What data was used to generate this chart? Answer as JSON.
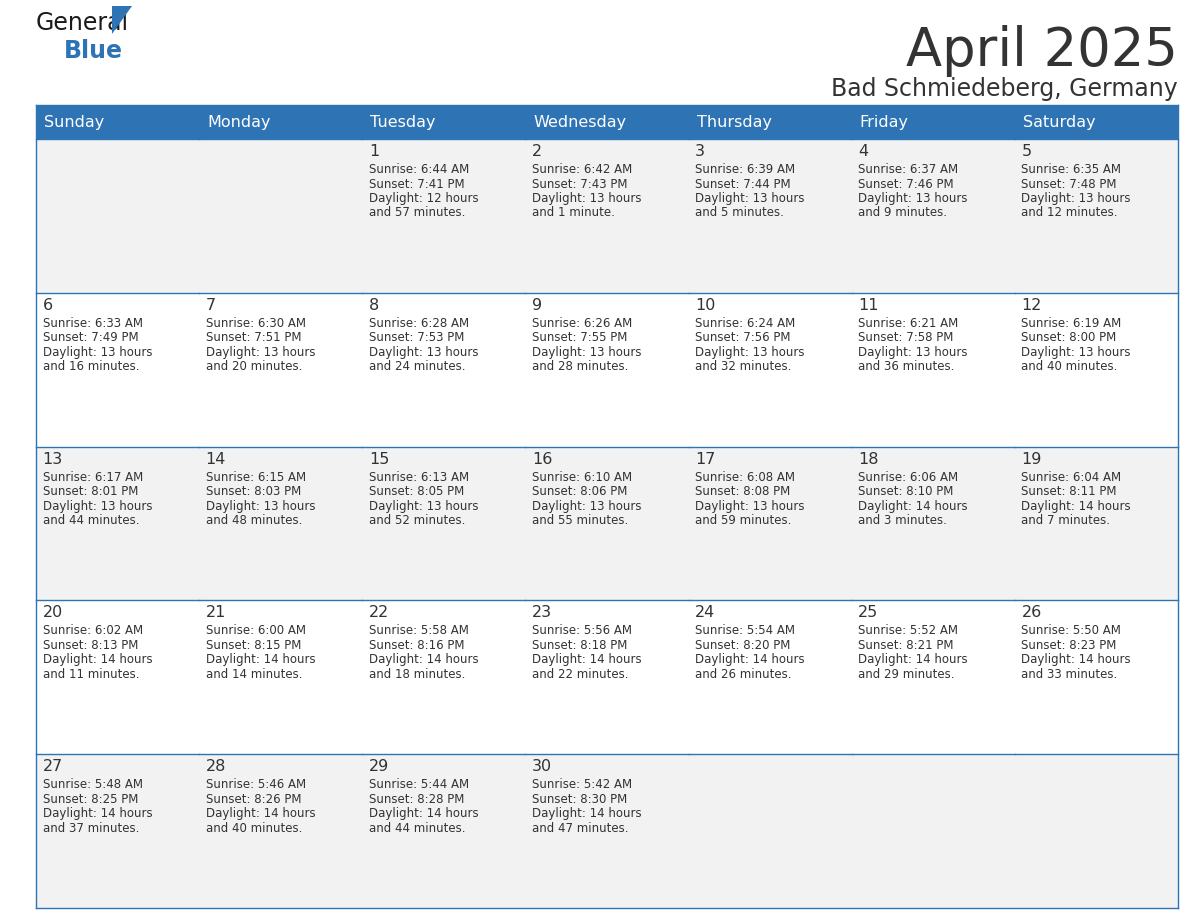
{
  "title": "April 2025",
  "subtitle": "Bad Schmiedeberg, Germany",
  "header_bg": "#2E74B5",
  "header_text_color": "#FFFFFF",
  "cell_bg_light": "#F2F2F2",
  "cell_bg_white": "#FFFFFF",
  "border_color": "#2E74B5",
  "text_color": "#333333",
  "days_of_week": [
    "Sunday",
    "Monday",
    "Tuesday",
    "Wednesday",
    "Thursday",
    "Friday",
    "Saturday"
  ],
  "weeks": [
    [
      {
        "day": "",
        "info": ""
      },
      {
        "day": "",
        "info": ""
      },
      {
        "day": "1",
        "info": "Sunrise: 6:44 AM\nSunset: 7:41 PM\nDaylight: 12 hours\nand 57 minutes."
      },
      {
        "day": "2",
        "info": "Sunrise: 6:42 AM\nSunset: 7:43 PM\nDaylight: 13 hours\nand 1 minute."
      },
      {
        "day": "3",
        "info": "Sunrise: 6:39 AM\nSunset: 7:44 PM\nDaylight: 13 hours\nand 5 minutes."
      },
      {
        "day": "4",
        "info": "Sunrise: 6:37 AM\nSunset: 7:46 PM\nDaylight: 13 hours\nand 9 minutes."
      },
      {
        "day": "5",
        "info": "Sunrise: 6:35 AM\nSunset: 7:48 PM\nDaylight: 13 hours\nand 12 minutes."
      }
    ],
    [
      {
        "day": "6",
        "info": "Sunrise: 6:33 AM\nSunset: 7:49 PM\nDaylight: 13 hours\nand 16 minutes."
      },
      {
        "day": "7",
        "info": "Sunrise: 6:30 AM\nSunset: 7:51 PM\nDaylight: 13 hours\nand 20 minutes."
      },
      {
        "day": "8",
        "info": "Sunrise: 6:28 AM\nSunset: 7:53 PM\nDaylight: 13 hours\nand 24 minutes."
      },
      {
        "day": "9",
        "info": "Sunrise: 6:26 AM\nSunset: 7:55 PM\nDaylight: 13 hours\nand 28 minutes."
      },
      {
        "day": "10",
        "info": "Sunrise: 6:24 AM\nSunset: 7:56 PM\nDaylight: 13 hours\nand 32 minutes."
      },
      {
        "day": "11",
        "info": "Sunrise: 6:21 AM\nSunset: 7:58 PM\nDaylight: 13 hours\nand 36 minutes."
      },
      {
        "day": "12",
        "info": "Sunrise: 6:19 AM\nSunset: 8:00 PM\nDaylight: 13 hours\nand 40 minutes."
      }
    ],
    [
      {
        "day": "13",
        "info": "Sunrise: 6:17 AM\nSunset: 8:01 PM\nDaylight: 13 hours\nand 44 minutes."
      },
      {
        "day": "14",
        "info": "Sunrise: 6:15 AM\nSunset: 8:03 PM\nDaylight: 13 hours\nand 48 minutes."
      },
      {
        "day": "15",
        "info": "Sunrise: 6:13 AM\nSunset: 8:05 PM\nDaylight: 13 hours\nand 52 minutes."
      },
      {
        "day": "16",
        "info": "Sunrise: 6:10 AM\nSunset: 8:06 PM\nDaylight: 13 hours\nand 55 minutes."
      },
      {
        "day": "17",
        "info": "Sunrise: 6:08 AM\nSunset: 8:08 PM\nDaylight: 13 hours\nand 59 minutes."
      },
      {
        "day": "18",
        "info": "Sunrise: 6:06 AM\nSunset: 8:10 PM\nDaylight: 14 hours\nand 3 minutes."
      },
      {
        "day": "19",
        "info": "Sunrise: 6:04 AM\nSunset: 8:11 PM\nDaylight: 14 hours\nand 7 minutes."
      }
    ],
    [
      {
        "day": "20",
        "info": "Sunrise: 6:02 AM\nSunset: 8:13 PM\nDaylight: 14 hours\nand 11 minutes."
      },
      {
        "day": "21",
        "info": "Sunrise: 6:00 AM\nSunset: 8:15 PM\nDaylight: 14 hours\nand 14 minutes."
      },
      {
        "day": "22",
        "info": "Sunrise: 5:58 AM\nSunset: 8:16 PM\nDaylight: 14 hours\nand 18 minutes."
      },
      {
        "day": "23",
        "info": "Sunrise: 5:56 AM\nSunset: 8:18 PM\nDaylight: 14 hours\nand 22 minutes."
      },
      {
        "day": "24",
        "info": "Sunrise: 5:54 AM\nSunset: 8:20 PM\nDaylight: 14 hours\nand 26 minutes."
      },
      {
        "day": "25",
        "info": "Sunrise: 5:52 AM\nSunset: 8:21 PM\nDaylight: 14 hours\nand 29 minutes."
      },
      {
        "day": "26",
        "info": "Sunrise: 5:50 AM\nSunset: 8:23 PM\nDaylight: 14 hours\nand 33 minutes."
      }
    ],
    [
      {
        "day": "27",
        "info": "Sunrise: 5:48 AM\nSunset: 8:25 PM\nDaylight: 14 hours\nand 37 minutes."
      },
      {
        "day": "28",
        "info": "Sunrise: 5:46 AM\nSunset: 8:26 PM\nDaylight: 14 hours\nand 40 minutes."
      },
      {
        "day": "29",
        "info": "Sunrise: 5:44 AM\nSunset: 8:28 PM\nDaylight: 14 hours\nand 44 minutes."
      },
      {
        "day": "30",
        "info": "Sunrise: 5:42 AM\nSunset: 8:30 PM\nDaylight: 14 hours\nand 47 minutes."
      },
      {
        "day": "",
        "info": ""
      },
      {
        "day": "",
        "info": ""
      },
      {
        "day": "",
        "info": ""
      }
    ]
  ],
  "logo_text_general": "General",
  "logo_text_blue": "Blue",
  "logo_color_general": "#1a1a1a",
  "logo_color_blue": "#2E74B5",
  "logo_triangle_color": "#2E74B5",
  "fig_width": 11.88,
  "fig_height": 9.18,
  "dpi": 100
}
